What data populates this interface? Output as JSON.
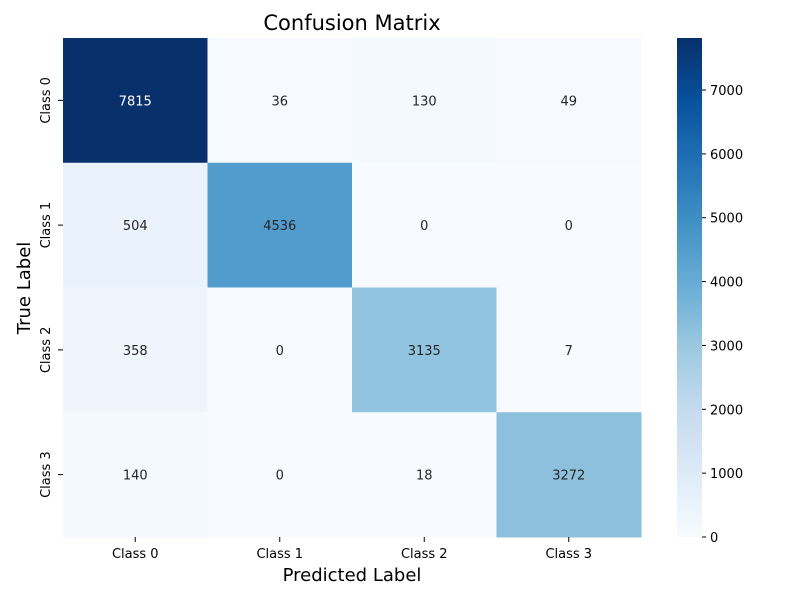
{
  "chart_data": {
    "type": "heatmap",
    "title": "Confusion Matrix",
    "xlabel": "Predicted Label",
    "ylabel": "True Label",
    "x_categories": [
      "Class 0",
      "Class 1",
      "Class 2",
      "Class 3"
    ],
    "y_categories": [
      "Class 0",
      "Class 1",
      "Class 2",
      "Class 3"
    ],
    "values": [
      [
        7815,
        36,
        130,
        49
      ],
      [
        504,
        4536,
        0,
        0
      ],
      [
        358,
        0,
        3135,
        7
      ],
      [
        140,
        0,
        18,
        3272
      ]
    ],
    "colormap": "Blues",
    "colorbar": {
      "min": 0,
      "max": 7815,
      "ticks": [
        0,
        1000,
        2000,
        3000,
        4000,
        5000,
        6000,
        7000
      ]
    },
    "grid": false
  }
}
